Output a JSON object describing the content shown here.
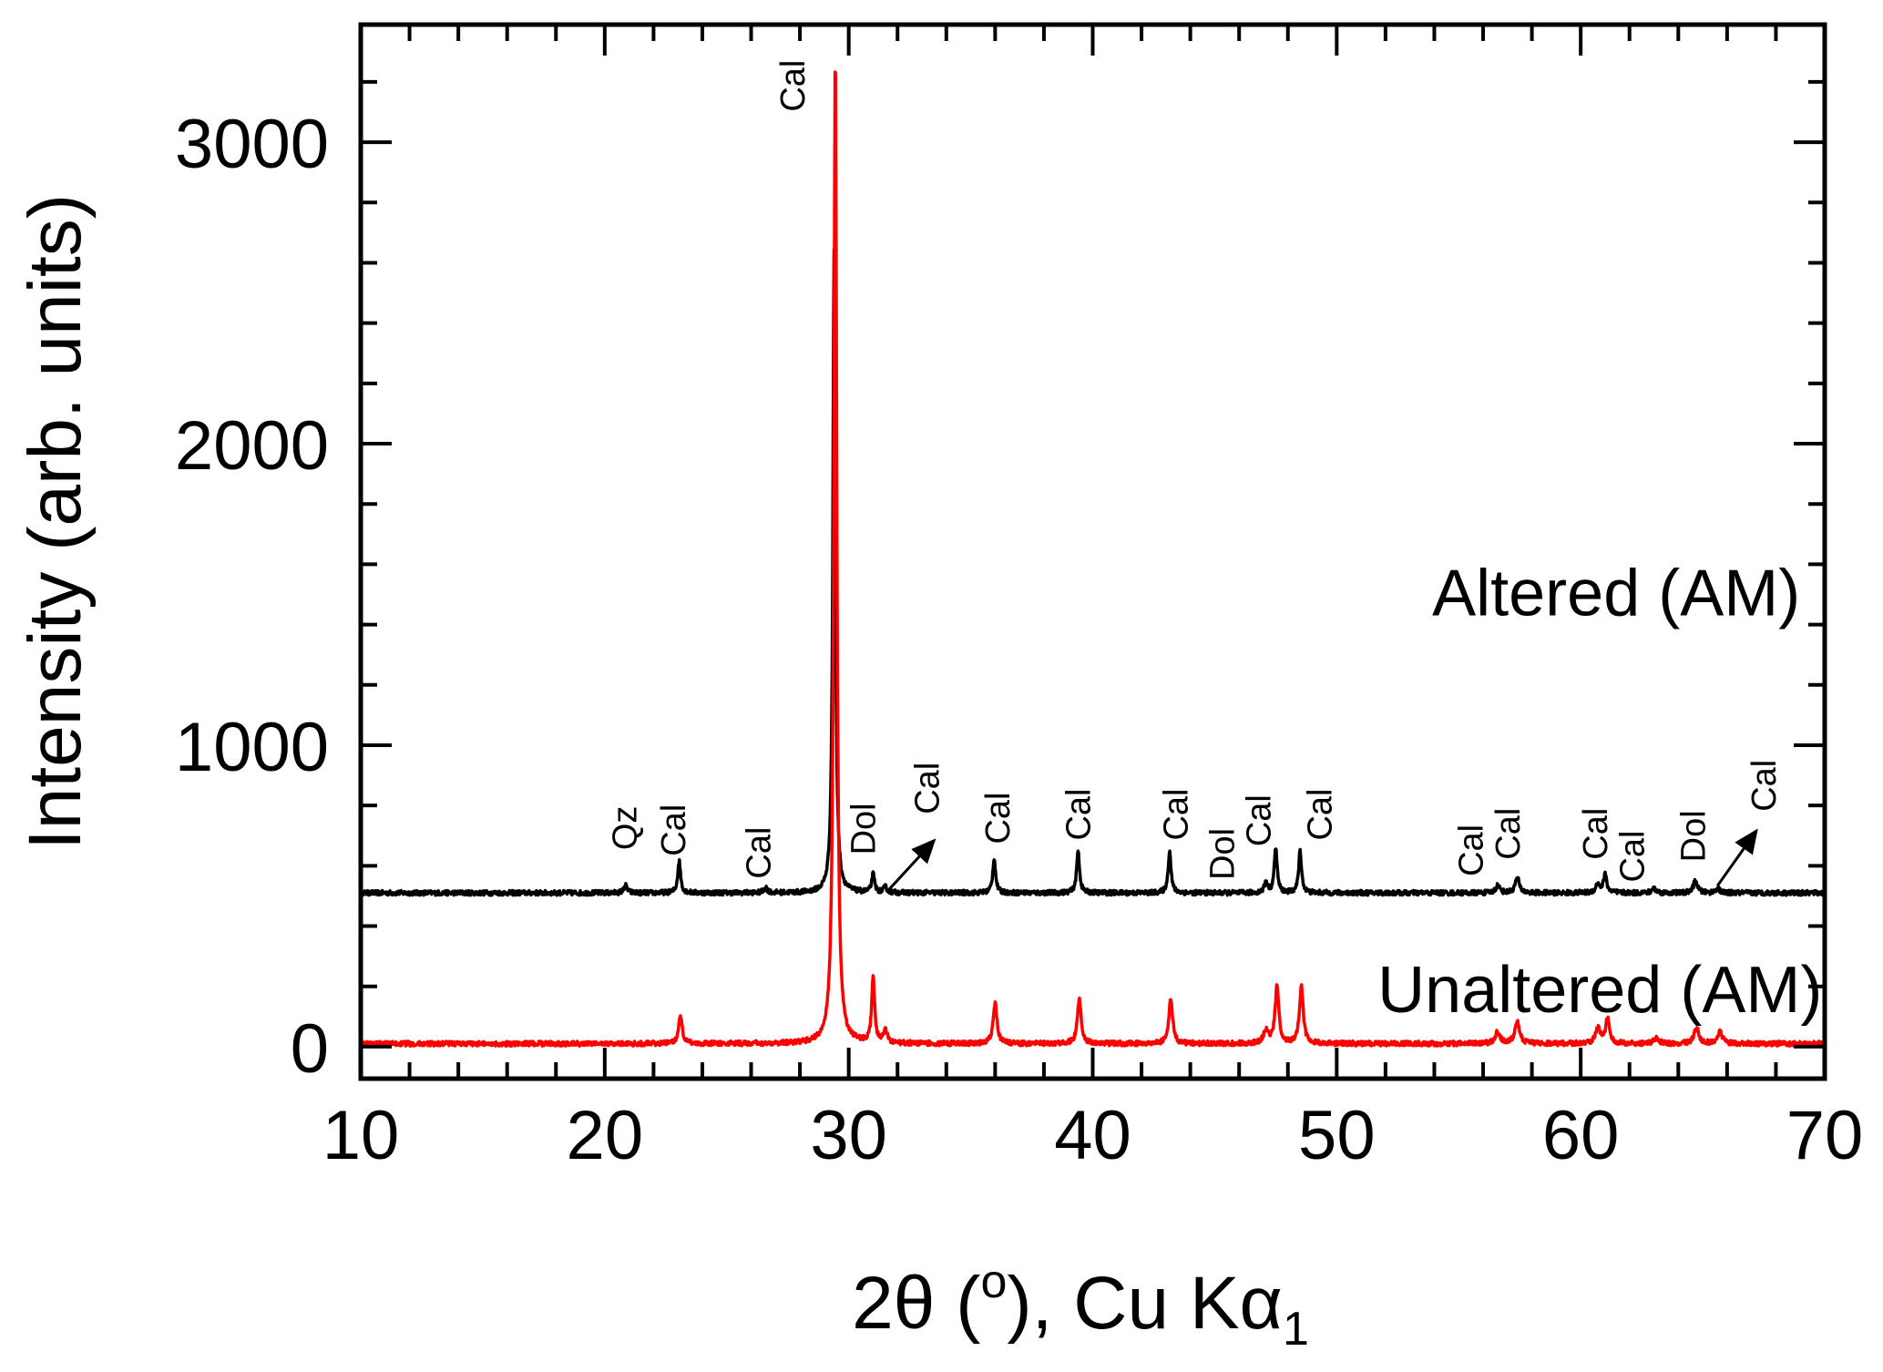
{
  "chart_data": {
    "type": "line",
    "title": "",
    "xlabel": "2θ (",
    "xlabel_sup": "o",
    "xlabel_mid": "), Cu Kα",
    "xlabel_sub": "1",
    "ylabel": "Intensity (arb. units)",
    "xlim": [
      10,
      70
    ],
    "ylim": [
      -106,
      3390
    ],
    "x_major_ticks": [
      10,
      20,
      30,
      40,
      50,
      60,
      70
    ],
    "x_tick_labels": [
      "10",
      "20",
      "30",
      "40",
      "50",
      "60",
      "70"
    ],
    "x_minor_step": 2,
    "y_major_ticks": [
      0,
      1000,
      2000,
      3000
    ],
    "y_tick_labels": [
      "0",
      "1000",
      "2000",
      "3000"
    ],
    "y_minor_step": 200,
    "grid": false,
    "series": [
      {
        "name": "Altered (AM)",
        "color": "#000000",
        "baseline": 510,
        "label_pos": [
          69.0,
          1431
        ],
        "peaks": [
          {
            "x": 20.85,
            "h": 25,
            "w": 0.08
          },
          {
            "x": 23.05,
            "h": 105,
            "w": 0.07
          },
          {
            "x": 26.6,
            "h": 18,
            "w": 0.08
          },
          {
            "x": 29.4,
            "h": 2133,
            "w": 0.06
          },
          {
            "x": 31.0,
            "h": 60,
            "w": 0.07
          },
          {
            "x": 31.5,
            "h": 18,
            "w": 0.08
          },
          {
            "x": 35.96,
            "h": 115,
            "w": 0.07
          },
          {
            "x": 39.4,
            "h": 140,
            "w": 0.07
          },
          {
            "x": 43.15,
            "h": 140,
            "w": 0.07
          },
          {
            "x": 47.1,
            "h": 35,
            "w": 0.08
          },
          {
            "x": 47.5,
            "h": 150,
            "w": 0.07
          },
          {
            "x": 48.5,
            "h": 140,
            "w": 0.07
          },
          {
            "x": 56.6,
            "h": 25,
            "w": 0.1
          },
          {
            "x": 57.4,
            "h": 50,
            "w": 0.1
          },
          {
            "x": 60.7,
            "h": 30,
            "w": 0.1
          },
          {
            "x": 61.0,
            "h": 60,
            "w": 0.08
          },
          {
            "x": 63.0,
            "h": 15,
            "w": 0.1
          },
          {
            "x": 64.7,
            "h": 40,
            "w": 0.1
          },
          {
            "x": 65.6,
            "h": 15,
            "w": 0.1
          }
        ]
      },
      {
        "name": "Unaltered (AM)",
        "color": "#ff0000",
        "baseline": 10,
        "label_pos": [
          69.9,
          115
        ],
        "peaks": [
          {
            "x": 23.1,
            "h": 88,
            "w": 0.09
          },
          {
            "x": 29.45,
            "h": 3290,
            "w": 0.07
          },
          {
            "x": 31.0,
            "h": 215,
            "w": 0.07
          },
          {
            "x": 31.5,
            "h": 40,
            "w": 0.1
          },
          {
            "x": 36.0,
            "h": 135,
            "w": 0.09
          },
          {
            "x": 39.45,
            "h": 150,
            "w": 0.09
          },
          {
            "x": 43.2,
            "h": 150,
            "w": 0.09
          },
          {
            "x": 47.1,
            "h": 40,
            "w": 0.12
          },
          {
            "x": 47.55,
            "h": 190,
            "w": 0.09
          },
          {
            "x": 48.55,
            "h": 190,
            "w": 0.09
          },
          {
            "x": 56.6,
            "h": 40,
            "w": 0.12
          },
          {
            "x": 57.4,
            "h": 70,
            "w": 0.12
          },
          {
            "x": 60.7,
            "h": 50,
            "w": 0.12
          },
          {
            "x": 61.1,
            "h": 80,
            "w": 0.1
          },
          {
            "x": 63.1,
            "h": 20,
            "w": 0.12
          },
          {
            "x": 64.75,
            "h": 50,
            "w": 0.12
          },
          {
            "x": 65.7,
            "h": 40,
            "w": 0.12
          }
        ]
      }
    ],
    "annotations": [
      {
        "text": "Qz",
        "x": 20.8,
        "y": 652
      },
      {
        "text": "Cal",
        "x": 22.8,
        "y": 632
      },
      {
        "text": "Cal",
        "x": 26.3,
        "y": 557
      },
      {
        "text": "Cal",
        "x": 27.7,
        "y": 3101
      },
      {
        "text": "Dol",
        "x": 30.6,
        "y": 636
      },
      {
        "text": "Cal",
        "x": 33.2,
        "y": 771,
        "arrow_from": [
          31.6,
          517
        ],
        "arrow_to": [
          33.5,
          684
        ]
      },
      {
        "text": "Cal",
        "x": 36.1,
        "y": 672
      },
      {
        "text": "Cal",
        "x": 39.4,
        "y": 684
      },
      {
        "text": "Cal",
        "x": 43.4,
        "y": 684
      },
      {
        "text": "Dol",
        "x": 45.3,
        "y": 553
      },
      {
        "text": "Cal",
        "x": 46.8,
        "y": 664
      },
      {
        "text": "Cal",
        "x": 49.3,
        "y": 684
      },
      {
        "text": "Cal",
        "x": 55.5,
        "y": 565
      },
      {
        "text": "Cal",
        "x": 57.0,
        "y": 620
      },
      {
        "text": "Cal",
        "x": 60.6,
        "y": 620
      },
      {
        "text": "Cal",
        "x": 62.1,
        "y": 545
      },
      {
        "text": "Dol",
        "x": 64.6,
        "y": 612
      },
      {
        "text": "Cal",
        "x": 67.5,
        "y": 780,
        "arrow_from": [
          65.6,
          533
        ],
        "arrow_to": [
          67.2,
          716
        ]
      }
    ]
  }
}
